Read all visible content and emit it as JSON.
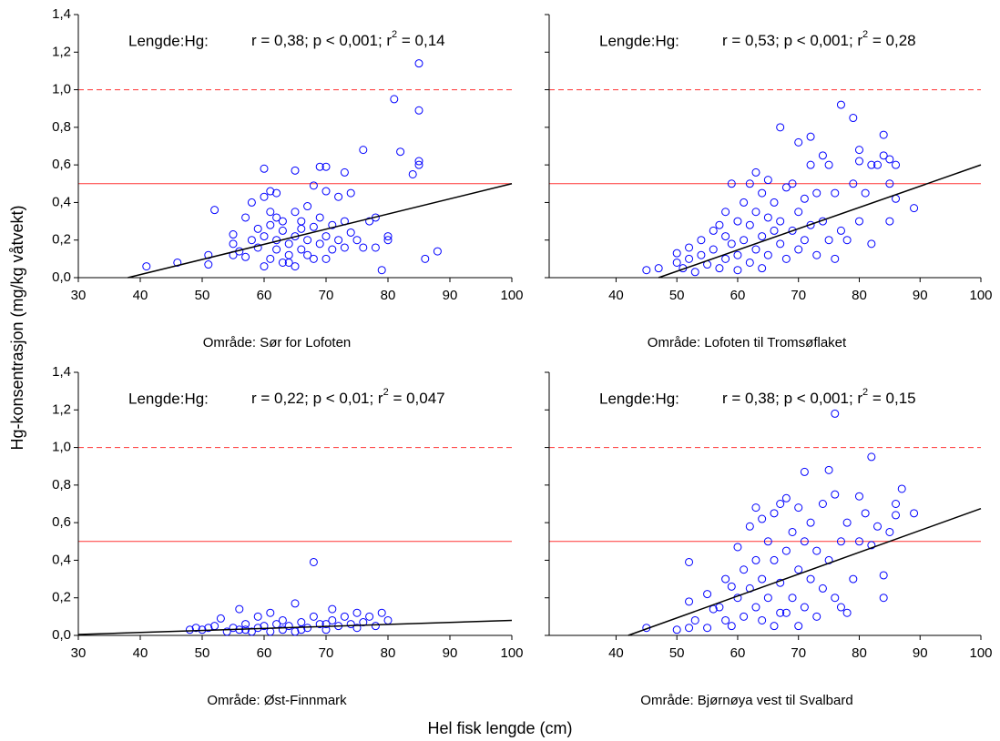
{
  "xlabel": "Hel fisk lengde (cm)",
  "ylabel": "Hg-konsentrasjon (mg/kg våtvekt)",
  "chart_data": [
    {
      "type": "scatter",
      "subtitle": "Område: Sør for Lofoten",
      "annotation": {
        "label": "Lengde:Hg:",
        "stats": "r = 0,38; p < 0,001; r",
        "sup": "2",
        "rest": " = 0,14"
      },
      "xlim": [
        30,
        100
      ],
      "xticks": [
        30,
        40,
        50,
        60,
        70,
        80,
        90,
        100
      ],
      "ylim": [
        0,
        1.4
      ],
      "yticks": [
        {
          "value": 0,
          "label": "0,0"
        },
        {
          "value": 0.2,
          "label": "0,2"
        },
        {
          "value": 0.4,
          "label": "0,4"
        },
        {
          "value": 0.6,
          "label": "0,6"
        },
        {
          "value": 0.8,
          "label": "0,8"
        },
        {
          "value": 1,
          "label": "1,0"
        },
        {
          "value": 1.2,
          "label": "1,2"
        },
        {
          "value": 1.4,
          "label": "1,4"
        }
      ],
      "color": "#0000ff",
      "fit_line": {
        "x": [
          38,
          100
        ],
        "values": [
          0,
          0.5
        ],
        "color": "#000000"
      },
      "hlines": [
        {
          "value": 0.5,
          "color": "#ff0000",
          "style": "solid"
        },
        {
          "value": 1,
          "color": "#ff0000",
          "style": "dashed"
        }
      ],
      "x": [
        41,
        46,
        51,
        51,
        52,
        55,
        55,
        55,
        56,
        57,
        57,
        58,
        58,
        59,
        60,
        60,
        60,
        60,
        61,
        61,
        61,
        61,
        62,
        62,
        62,
        63,
        63,
        63,
        64,
        64,
        65,
        65,
        65,
        65,
        66,
        66,
        66,
        67,
        67,
        67,
        68,
        68,
        68,
        69,
        69,
        69,
        70,
        70,
        70,
        70,
        71,
        71,
        72,
        72,
        73,
        73,
        73,
        74,
        74,
        75,
        76,
        76,
        77,
        78,
        78,
        79,
        80,
        80,
        81,
        82,
        84,
        85,
        85,
        85,
        85,
        86,
        88,
        64,
        62,
        59
      ],
      "values": [
        0.06,
        0.08,
        0.07,
        0.12,
        0.36,
        0.12,
        0.18,
        0.23,
        0.14,
        0.32,
        0.11,
        0.4,
        0.2,
        0.16,
        0.58,
        0.43,
        0.06,
        0.22,
        0.35,
        0.46,
        0.28,
        0.1,
        0.45,
        0.2,
        0.15,
        0.3,
        0.25,
        0.08,
        0.18,
        0.12,
        0.57,
        0.35,
        0.22,
        0.06,
        0.3,
        0.15,
        0.26,
        0.2,
        0.38,
        0.12,
        0.49,
        0.27,
        0.1,
        0.59,
        0.32,
        0.18,
        0.59,
        0.46,
        0.22,
        0.1,
        0.28,
        0.15,
        0.43,
        0.2,
        0.56,
        0.3,
        0.16,
        0.45,
        0.24,
        0.2,
        0.68,
        0.16,
        0.3,
        0.32,
        0.16,
        0.04,
        0.22,
        0.2,
        0.95,
        0.67,
        0.55,
        1.14,
        0.89,
        0.62,
        0.6,
        0.1,
        0.14,
        0.08,
        0.32,
        0.26
      ]
    },
    {
      "type": "scatter",
      "subtitle": "Område: Lofoten til Tromsøflaket",
      "annotation": {
        "label": "Lengde:Hg:",
        "stats": "r = 0,53; p < 0,001; r",
        "sup": "2",
        "rest": " = 0,28"
      },
      "xlim": [
        29,
        100
      ],
      "xticks": [
        40,
        50,
        60,
        70,
        80,
        90,
        100
      ],
      "ylim": [
        0,
        1.4
      ],
      "yticks": [
        0,
        0.2,
        0.4,
        0.6,
        0.8,
        1,
        1.2,
        1.4
      ],
      "show_ytick_labels": false,
      "color": "#0000ff",
      "fit_line": {
        "x": [
          47,
          100
        ],
        "values": [
          0,
          0.6
        ],
        "color": "#000000"
      },
      "hlines": [
        {
          "value": 0.5,
          "color": "#ff0000",
          "style": "solid"
        },
        {
          "value": 1,
          "color": "#ff0000",
          "style": "dashed"
        }
      ],
      "x": [
        45,
        47,
        50,
        50,
        51,
        52,
        52,
        53,
        54,
        54,
        55,
        56,
        56,
        57,
        57,
        58,
        58,
        58,
        59,
        59,
        60,
        60,
        60,
        61,
        61,
        62,
        62,
        62,
        63,
        63,
        63,
        64,
        64,
        64,
        65,
        65,
        65,
        66,
        66,
        67,
        67,
        68,
        68,
        69,
        69,
        70,
        70,
        70,
        71,
        71,
        72,
        72,
        72,
        73,
        73,
        74,
        74,
        75,
        75,
        76,
        77,
        77,
        78,
        79,
        79,
        80,
        80,
        80,
        81,
        82,
        82,
        83,
        84,
        84,
        85,
        85,
        85,
        86,
        86,
        89,
        67,
        76
      ],
      "values": [
        0.04,
        0.05,
        0.08,
        0.13,
        0.05,
        0.1,
        0.16,
        0.03,
        0.12,
        0.2,
        0.07,
        0.25,
        0.15,
        0.28,
        0.05,
        0.22,
        0.35,
        0.1,
        0.18,
        0.5,
        0.3,
        0.12,
        0.04,
        0.4,
        0.2,
        0.5,
        0.28,
        0.08,
        0.56,
        0.35,
        0.15,
        0.22,
        0.45,
        0.05,
        0.32,
        0.12,
        0.52,
        0.25,
        0.4,
        0.18,
        0.3,
        0.48,
        0.1,
        0.5,
        0.25,
        0.72,
        0.35,
        0.15,
        0.42,
        0.2,
        0.75,
        0.6,
        0.28,
        0.45,
        0.12,
        0.65,
        0.3,
        0.6,
        0.2,
        0.45,
        0.92,
        0.25,
        0.2,
        0.85,
        0.5,
        0.68,
        0.62,
        0.3,
        0.45,
        0.6,
        0.18,
        0.6,
        0.76,
        0.65,
        0.63,
        0.5,
        0.3,
        0.6,
        0.42,
        0.37,
        0.8,
        0.1
      ]
    },
    {
      "type": "scatter",
      "subtitle": "Område: Øst-Finnmark",
      "annotation": {
        "label": "Lengde:Hg:",
        "stats": "r = 0,22; p < 0,01; r",
        "sup": "2",
        "rest": " = 0,047"
      },
      "xlim": [
        30,
        100
      ],
      "xticks": [
        30,
        40,
        50,
        60,
        70,
        80,
        90,
        100
      ],
      "ylim": [
        0,
        1.4
      ],
      "yticks": [
        {
          "value": 0,
          "label": "0,0"
        },
        {
          "value": 0.2,
          "label": "0,2"
        },
        {
          "value": 0.4,
          "label": "0,4"
        },
        {
          "value": 0.6,
          "label": "0,6"
        },
        {
          "value": 0.8,
          "label": "0,8"
        },
        {
          "value": 1,
          "label": "1,0"
        },
        {
          "value": 1.2,
          "label": "1,2"
        },
        {
          "value": 1.4,
          "label": "1,4"
        }
      ],
      "color": "#0000ff",
      "fit_line": {
        "x": [
          30,
          100
        ],
        "values": [
          0.005,
          0.08
        ],
        "color": "#000000"
      },
      "hlines": [
        {
          "value": 0.5,
          "color": "#ff0000",
          "style": "solid"
        },
        {
          "value": 1,
          "color": "#ff0000",
          "style": "dashed"
        }
      ],
      "x": [
        48,
        49,
        50,
        51,
        52,
        53,
        54,
        55,
        56,
        56,
        57,
        58,
        59,
        59,
        60,
        61,
        61,
        62,
        63,
        63,
        64,
        65,
        65,
        66,
        67,
        68,
        68,
        69,
        70,
        71,
        71,
        72,
        73,
        74,
        75,
        75,
        76,
        77,
        78,
        79,
        80,
        70,
        66,
        57
      ],
      "values": [
        0.03,
        0.04,
        0.03,
        0.04,
        0.05,
        0.09,
        0.02,
        0.04,
        0.14,
        0.03,
        0.06,
        0.02,
        0.1,
        0.04,
        0.05,
        0.02,
        0.12,
        0.06,
        0.03,
        0.08,
        0.05,
        0.17,
        0.02,
        0.07,
        0.04,
        0.39,
        0.1,
        0.06,
        0.03,
        0.14,
        0.08,
        0.05,
        0.1,
        0.06,
        0.12,
        0.04,
        0.07,
        0.1,
        0.05,
        0.12,
        0.08,
        0.06,
        0.03,
        0.03
      ]
    },
    {
      "type": "scatter",
      "subtitle": "Område: Bjørnøya vest til Svalbard",
      "annotation": {
        "label": "Lengde:Hg:",
        "stats": "r = 0,38; p < 0,001; r",
        "sup": "2",
        "rest": " = 0,15"
      },
      "xlim": [
        29,
        100
      ],
      "xticks": [
        40,
        50,
        60,
        70,
        80,
        90,
        100
      ],
      "ylim": [
        0,
        1.4
      ],
      "yticks": [
        0,
        0.2,
        0.4,
        0.6,
        0.8,
        1,
        1.2,
        1.4
      ],
      "show_ytick_labels": false,
      "color": "#0000ff",
      "fit_line": {
        "x": [
          42,
          100
        ],
        "values": [
          0,
          0.675
        ],
        "color": "#000000"
      },
      "hlines": [
        {
          "value": 0.5,
          "color": "#ff0000",
          "style": "solid"
        },
        {
          "value": 1,
          "color": "#ff0000",
          "style": "dashed"
        }
      ],
      "x": [
        45,
        50,
        52,
        52,
        52,
        53,
        55,
        55,
        56,
        57,
        58,
        58,
        59,
        59,
        60,
        60,
        61,
        61,
        62,
        62,
        63,
        63,
        63,
        64,
        64,
        64,
        65,
        65,
        66,
        66,
        66,
        67,
        67,
        68,
        68,
        68,
        69,
        69,
        70,
        70,
        70,
        71,
        71,
        71,
        72,
        72,
        73,
        73,
        74,
        74,
        75,
        75,
        76,
        76,
        76,
        77,
        78,
        78,
        79,
        80,
        80,
        81,
        82,
        82,
        83,
        84,
        84,
        85,
        86,
        86,
        87,
        89,
        77,
        67
      ],
      "values": [
        0.04,
        0.03,
        0.18,
        0.39,
        0.04,
        0.08,
        0.22,
        0.04,
        0.14,
        0.15,
        0.3,
        0.08,
        0.26,
        0.05,
        0.47,
        0.2,
        0.35,
        0.1,
        0.58,
        0.25,
        0.68,
        0.4,
        0.15,
        0.62,
        0.3,
        0.08,
        0.5,
        0.2,
        0.65,
        0.4,
        0.05,
        0.7,
        0.28,
        0.73,
        0.45,
        0.12,
        0.55,
        0.2,
        0.68,
        0.35,
        0.05,
        0.87,
        0.5,
        0.15,
        0.6,
        0.3,
        0.45,
        0.1,
        0.7,
        0.25,
        0.88,
        0.4,
        1.18,
        0.75,
        0.2,
        0.5,
        0.6,
        0.12,
        0.3,
        0.74,
        0.5,
        0.65,
        0.95,
        0.48,
        0.58,
        0.32,
        0.2,
        0.55,
        0.7,
        0.64,
        0.78,
        0.65,
        0.15,
        0.12
      ]
    }
  ]
}
